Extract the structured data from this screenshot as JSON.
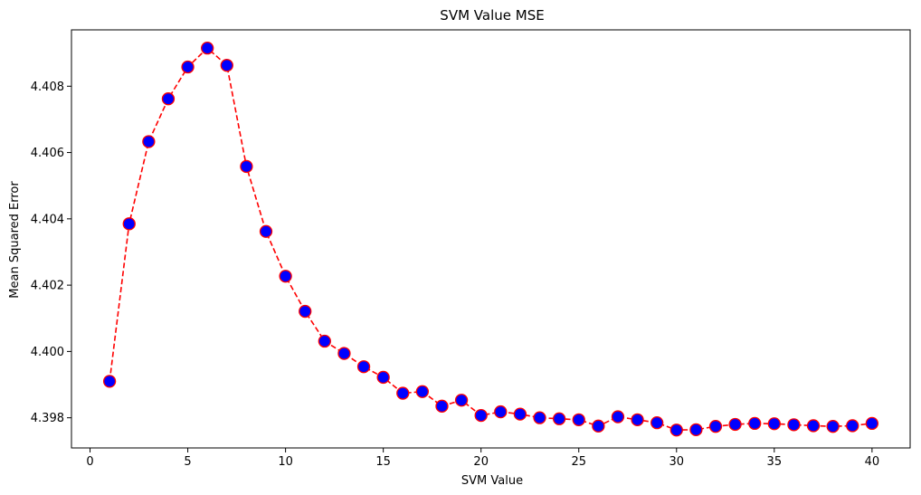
{
  "chart_data": {
    "type": "line",
    "title": "SVM Value MSE",
    "xlabel": "SVM Value",
    "ylabel": "Mean Squared Error",
    "x": [
      1,
      2,
      3,
      4,
      5,
      6,
      7,
      8,
      9,
      10,
      11,
      12,
      13,
      14,
      15,
      16,
      17,
      18,
      19,
      20,
      21,
      22,
      23,
      24,
      25,
      26,
      27,
      28,
      29,
      30,
      31,
      32,
      33,
      34,
      35,
      36,
      37,
      38,
      39,
      40
    ],
    "series": [
      {
        "values": [
          4.3991,
          4.40385,
          4.40633,
          4.40762,
          4.40858,
          4.40915,
          4.40863,
          4.40558,
          4.40362,
          4.40227,
          4.40121,
          4.40031,
          4.39994,
          4.39954,
          4.39922,
          4.39874,
          4.39879,
          4.39835,
          4.39853,
          4.39807,
          4.39818,
          4.39811,
          4.398,
          4.39797,
          4.39794,
          4.39775,
          4.39803,
          4.39794,
          4.39785,
          4.39763,
          4.39764,
          4.39774,
          4.3978,
          4.39783,
          4.39782,
          4.39779,
          4.39776,
          4.39774,
          4.39776,
          4.39783
        ],
        "line_color": "#ff0000",
        "line_style": "dashed",
        "marker": "circle",
        "marker_face_color": "#0000ff",
        "marker_edge_color": "#ff0000"
      }
    ],
    "xlim": [
      -0.95,
      41.95
    ],
    "ylim": [
      4.39709,
      4.4097
    ],
    "xticks": [
      0,
      5,
      10,
      15,
      20,
      25,
      30,
      35,
      40
    ],
    "xtick_labels": [
      "0",
      "5",
      "10",
      "15",
      "20",
      "25",
      "30",
      "35",
      "40"
    ],
    "yticks": [
      4.398,
      4.4,
      4.402,
      4.404,
      4.406,
      4.408
    ],
    "ytick_labels": [
      "4.398",
      "4.400",
      "4.402",
      "4.404",
      "4.406",
      "4.408"
    ],
    "grid": false,
    "legend": false
  }
}
